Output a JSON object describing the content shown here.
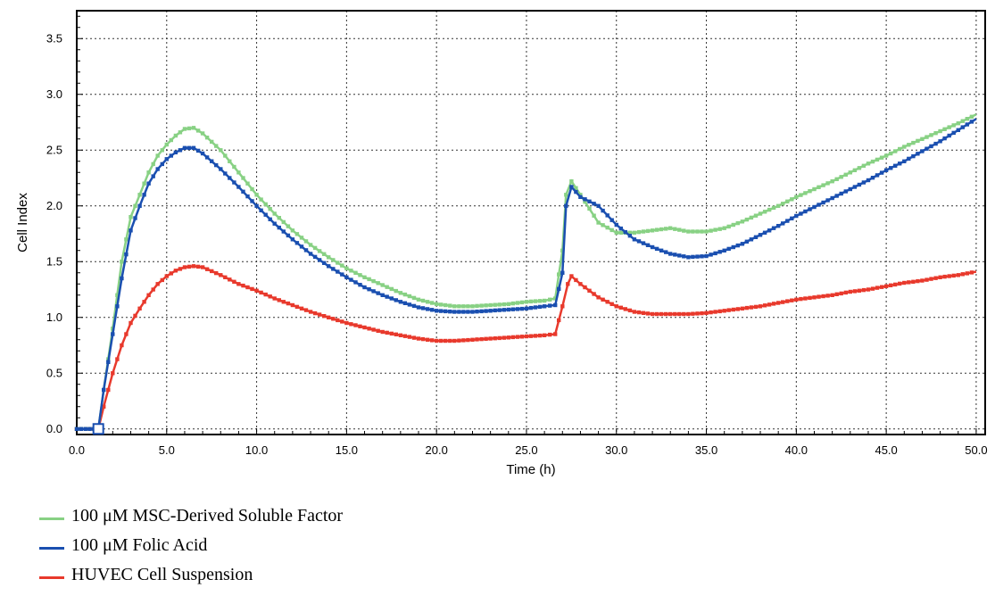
{
  "chart_data": {
    "type": "line",
    "xlabel": "Time (h)",
    "ylabel": "Cell Index",
    "xlim": [
      0,
      50.5
    ],
    "ylim": [
      -0.05,
      3.75
    ],
    "x_ticks": [
      "0.0",
      "5.0",
      "10.0",
      "15.0",
      "20.0",
      "25.0",
      "30.0",
      "35.0",
      "40.0",
      "45.0",
      "50.0"
    ],
    "y_ticks": [
      "0.0",
      "0.5",
      "1.0",
      "1.5",
      "2.0",
      "2.5",
      "3.0",
      "3.5"
    ],
    "grid": true,
    "legend_position": "bottom-left",
    "series": [
      {
        "name": "100 μM MSC-Derived Soluble Factor",
        "color": "#88d184",
        "points": [
          [
            0,
            0
          ],
          [
            1.2,
            0
          ],
          [
            1.5,
            0.35
          ],
          [
            2,
            0.9
          ],
          [
            2.5,
            1.5
          ],
          [
            3,
            1.9
          ],
          [
            3.5,
            2.1
          ],
          [
            4,
            2.3
          ],
          [
            4.5,
            2.45
          ],
          [
            5,
            2.55
          ],
          [
            5.5,
            2.63
          ],
          [
            6,
            2.69
          ],
          [
            6.5,
            2.7
          ],
          [
            7,
            2.65
          ],
          [
            8,
            2.5
          ],
          [
            9,
            2.3
          ],
          [
            10,
            2.1
          ],
          [
            11,
            1.93
          ],
          [
            12,
            1.78
          ],
          [
            13,
            1.65
          ],
          [
            14,
            1.54
          ],
          [
            15,
            1.44
          ],
          [
            16,
            1.36
          ],
          [
            17,
            1.29
          ],
          [
            18,
            1.22
          ],
          [
            19,
            1.16
          ],
          [
            20,
            1.12
          ],
          [
            21,
            1.1
          ],
          [
            22,
            1.1
          ],
          [
            23,
            1.11
          ],
          [
            24,
            1.12
          ],
          [
            25,
            1.14
          ],
          [
            26,
            1.15
          ],
          [
            26.6,
            1.17
          ],
          [
            27,
            1.6
          ],
          [
            27.2,
            2.1
          ],
          [
            27.5,
            2.22
          ],
          [
            28,
            2.1
          ],
          [
            29,
            1.85
          ],
          [
            30,
            1.76
          ],
          [
            31,
            1.76
          ],
          [
            32,
            1.78
          ],
          [
            33,
            1.8
          ],
          [
            34,
            1.77
          ],
          [
            35,
            1.77
          ],
          [
            36,
            1.8
          ],
          [
            37,
            1.86
          ],
          [
            38,
            1.93
          ],
          [
            39,
            2.0
          ],
          [
            40,
            2.08
          ],
          [
            41,
            2.15
          ],
          [
            42,
            2.22
          ],
          [
            43,
            2.3
          ],
          [
            44,
            2.38
          ],
          [
            45,
            2.45
          ],
          [
            46,
            2.53
          ],
          [
            47,
            2.6
          ],
          [
            48,
            2.67
          ],
          [
            49,
            2.74
          ],
          [
            50,
            2.82
          ]
        ]
      },
      {
        "name": "100 μM Folic Acid",
        "color": "#1a4fb0",
        "points": [
          [
            0,
            0
          ],
          [
            1.2,
            0
          ],
          [
            1.5,
            0.35
          ],
          [
            2,
            0.85
          ],
          [
            2.5,
            1.35
          ],
          [
            3,
            1.78
          ],
          [
            3.5,
            2.0
          ],
          [
            4,
            2.2
          ],
          [
            4.5,
            2.33
          ],
          [
            5,
            2.42
          ],
          [
            5.5,
            2.48
          ],
          [
            6,
            2.52
          ],
          [
            6.5,
            2.52
          ],
          [
            7,
            2.47
          ],
          [
            8,
            2.33
          ],
          [
            9,
            2.17
          ],
          [
            10,
            2.0
          ],
          [
            11,
            1.84
          ],
          [
            12,
            1.7
          ],
          [
            13,
            1.57
          ],
          [
            14,
            1.46
          ],
          [
            15,
            1.36
          ],
          [
            16,
            1.27
          ],
          [
            17,
            1.2
          ],
          [
            18,
            1.14
          ],
          [
            19,
            1.09
          ],
          [
            20,
            1.06
          ],
          [
            21,
            1.05
          ],
          [
            22,
            1.05
          ],
          [
            23,
            1.06
          ],
          [
            24,
            1.07
          ],
          [
            25,
            1.08
          ],
          [
            26,
            1.1
          ],
          [
            26.6,
            1.11
          ],
          [
            27,
            1.4
          ],
          [
            27.2,
            2.0
          ],
          [
            27.5,
            2.17
          ],
          [
            28,
            2.08
          ],
          [
            29,
            2.0
          ],
          [
            30,
            1.83
          ],
          [
            31,
            1.7
          ],
          [
            32,
            1.63
          ],
          [
            33,
            1.57
          ],
          [
            34,
            1.54
          ],
          [
            35,
            1.55
          ],
          [
            36,
            1.6
          ],
          [
            37,
            1.66
          ],
          [
            38,
            1.74
          ],
          [
            39,
            1.82
          ],
          [
            40,
            1.91
          ],
          [
            41,
            1.99
          ],
          [
            42,
            2.07
          ],
          [
            43,
            2.15
          ],
          [
            44,
            2.23
          ],
          [
            45,
            2.32
          ],
          [
            46,
            2.4
          ],
          [
            47,
            2.49
          ],
          [
            48,
            2.58
          ],
          [
            49,
            2.68
          ],
          [
            50,
            2.78
          ]
        ]
      },
      {
        "name": "HUVEC Cell Suspension",
        "color": "#e8392c",
        "points": [
          [
            0,
            0
          ],
          [
            1.2,
            0
          ],
          [
            1.5,
            0.2
          ],
          [
            2,
            0.5
          ],
          [
            2.5,
            0.75
          ],
          [
            3,
            0.95
          ],
          [
            3.5,
            1.08
          ],
          [
            4,
            1.2
          ],
          [
            4.5,
            1.3
          ],
          [
            5,
            1.37
          ],
          [
            5.5,
            1.42
          ],
          [
            6,
            1.45
          ],
          [
            6.5,
            1.46
          ],
          [
            7,
            1.45
          ],
          [
            8,
            1.38
          ],
          [
            9,
            1.3
          ],
          [
            10,
            1.24
          ],
          [
            11,
            1.17
          ],
          [
            12,
            1.11
          ],
          [
            13,
            1.05
          ],
          [
            14,
            1.0
          ],
          [
            15,
            0.95
          ],
          [
            16,
            0.91
          ],
          [
            17,
            0.87
          ],
          [
            18,
            0.84
          ],
          [
            19,
            0.81
          ],
          [
            20,
            0.79
          ],
          [
            21,
            0.79
          ],
          [
            22,
            0.8
          ],
          [
            23,
            0.81
          ],
          [
            24,
            0.82
          ],
          [
            25,
            0.83
          ],
          [
            26,
            0.84
          ],
          [
            26.6,
            0.85
          ],
          [
            27,
            1.1
          ],
          [
            27.3,
            1.3
          ],
          [
            27.5,
            1.37
          ],
          [
            28,
            1.3
          ],
          [
            29,
            1.18
          ],
          [
            30,
            1.1
          ],
          [
            31,
            1.05
          ],
          [
            32,
            1.03
          ],
          [
            33,
            1.03
          ],
          [
            34,
            1.03
          ],
          [
            35,
            1.04
          ],
          [
            36,
            1.06
          ],
          [
            37,
            1.08
          ],
          [
            38,
            1.1
          ],
          [
            39,
            1.13
          ],
          [
            40,
            1.16
          ],
          [
            41,
            1.18
          ],
          [
            42,
            1.2
          ],
          [
            43,
            1.23
          ],
          [
            44,
            1.25
          ],
          [
            45,
            1.28
          ],
          [
            46,
            1.31
          ],
          [
            47,
            1.33
          ],
          [
            48,
            1.36
          ],
          [
            49,
            1.38
          ],
          [
            50,
            1.41
          ]
        ]
      }
    ]
  }
}
